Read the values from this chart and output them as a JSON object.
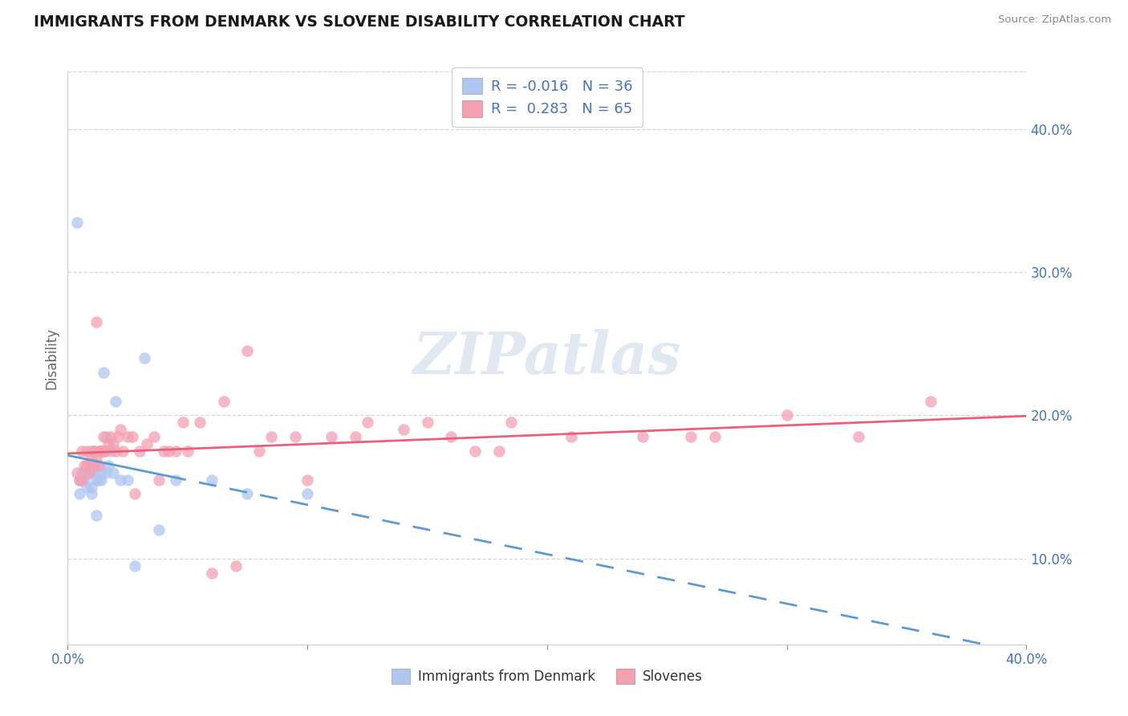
{
  "title": "IMMIGRANTS FROM DENMARK VS SLOVENE DISABILITY CORRELATION CHART",
  "source": "Source: ZipAtlas.com",
  "ylabel": "Disability",
  "x_min": 0.0,
  "x_max": 0.4,
  "y_min": 0.04,
  "y_max": 0.44,
  "y_ticks": [
    0.1,
    0.2,
    0.3,
    0.4
  ],
  "y_tick_labels": [
    "10.0%",
    "20.0%",
    "30.0%",
    "40.0%"
  ],
  "legend_r_denmark": "-0.016",
  "legend_n_denmark": "36",
  "legend_r_slovene": "0.283",
  "legend_n_slovene": "65",
  "color_denmark": "#aec6f0",
  "color_slovene": "#f4a0b0",
  "line_color_denmark": "#5b9bd5",
  "line_color_slovene": "#e8607a",
  "watermark_color": "#ccd9ea",
  "denmark_x": [
    0.004,
    0.005,
    0.005,
    0.006,
    0.006,
    0.007,
    0.007,
    0.008,
    0.009,
    0.009,
    0.01,
    0.01,
    0.011,
    0.011,
    0.012,
    0.012,
    0.013,
    0.013,
    0.014,
    0.014,
    0.015,
    0.016,
    0.016,
    0.017,
    0.018,
    0.019,
    0.02,
    0.022,
    0.025,
    0.028,
    0.032,
    0.038,
    0.045,
    0.06,
    0.075,
    0.1
  ],
  "denmark_y": [
    0.335,
    0.155,
    0.145,
    0.16,
    0.155,
    0.16,
    0.155,
    0.15,
    0.16,
    0.165,
    0.15,
    0.145,
    0.175,
    0.16,
    0.155,
    0.13,
    0.165,
    0.155,
    0.16,
    0.155,
    0.23,
    0.185,
    0.16,
    0.165,
    0.175,
    0.16,
    0.21,
    0.155,
    0.155,
    0.095,
    0.24,
    0.12,
    0.155,
    0.155,
    0.145,
    0.145
  ],
  "slovene_x": [
    0.004,
    0.005,
    0.006,
    0.006,
    0.007,
    0.008,
    0.008,
    0.009,
    0.01,
    0.01,
    0.011,
    0.011,
    0.012,
    0.012,
    0.013,
    0.013,
    0.014,
    0.014,
    0.015,
    0.015,
    0.016,
    0.017,
    0.018,
    0.019,
    0.02,
    0.021,
    0.022,
    0.023,
    0.025,
    0.027,
    0.03,
    0.033,
    0.036,
    0.04,
    0.045,
    0.05,
    0.06,
    0.07,
    0.085,
    0.1,
    0.12,
    0.14,
    0.16,
    0.185,
    0.21,
    0.24,
    0.27,
    0.3,
    0.33,
    0.36,
    0.08,
    0.095,
    0.11,
    0.125,
    0.15,
    0.028,
    0.26,
    0.18,
    0.055,
    0.075,
    0.038,
    0.042,
    0.048,
    0.17,
    0.065
  ],
  "slovene_y": [
    0.16,
    0.155,
    0.175,
    0.155,
    0.165,
    0.175,
    0.165,
    0.16,
    0.175,
    0.17,
    0.175,
    0.165,
    0.17,
    0.265,
    0.175,
    0.165,
    0.175,
    0.175,
    0.185,
    0.175,
    0.175,
    0.18,
    0.185,
    0.18,
    0.175,
    0.185,
    0.19,
    0.175,
    0.185,
    0.185,
    0.175,
    0.18,
    0.185,
    0.175,
    0.175,
    0.175,
    0.09,
    0.095,
    0.185,
    0.155,
    0.185,
    0.19,
    0.185,
    0.195,
    0.185,
    0.185,
    0.185,
    0.2,
    0.185,
    0.21,
    0.175,
    0.185,
    0.185,
    0.195,
    0.195,
    0.145,
    0.185,
    0.175,
    0.195,
    0.245,
    0.155,
    0.175,
    0.195,
    0.175,
    0.21
  ]
}
